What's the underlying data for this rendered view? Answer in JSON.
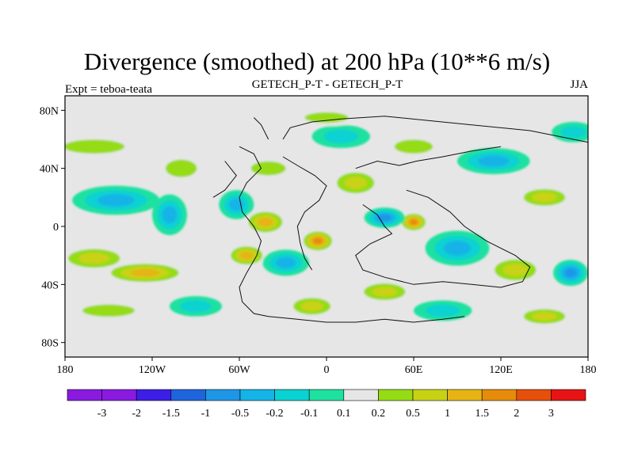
{
  "chart_data": {
    "type": "heatmap",
    "title": "Divergence (smoothed) at 200 hPa (10**6 m/s)",
    "left_string": "Expt = teboa-teata",
    "center_string": "GETECH_P-T - GETECH_P-T",
    "right_string": "JJA",
    "x_ticks": [
      {
        "value": -180,
        "label": "180"
      },
      {
        "value": -120,
        "label": "120W"
      },
      {
        "value": -60,
        "label": "60W"
      },
      {
        "value": 0,
        "label": "0"
      },
      {
        "value": 60,
        "label": "60E"
      },
      {
        "value": 120,
        "label": "120E"
      },
      {
        "value": 180,
        "label": "180"
      }
    ],
    "y_ticks": [
      {
        "value": 80,
        "label": "80N"
      },
      {
        "value": 40,
        "label": "40N"
      },
      {
        "value": 0,
        "label": "0"
      },
      {
        "value": -40,
        "label": "40S"
      },
      {
        "value": -80,
        "label": "80S"
      }
    ],
    "xlim": [
      -180,
      180
    ],
    "ylim": [
      -90,
      90
    ],
    "colorbar": {
      "levels": [
        "-3",
        "-2",
        "-1.5",
        "-1",
        "-0.5",
        "-0.2",
        "-0.1",
        "0.1",
        "0.2",
        "0.5",
        "1",
        "1.5",
        "2",
        "3"
      ],
      "colors": [
        "#8a1ae0",
        "#3c1ee6",
        "#1e64dc",
        "#1e96e6",
        "#14b4e6",
        "#0ad2d2",
        "#1ee1a0",
        "#e6e6e6",
        "#96dc14",
        "#c8d214",
        "#e6b414",
        "#e68c0a",
        "#e6500a",
        "#e61414"
      ]
    },
    "blobs": [
      {
        "x": -160,
        "y": 55,
        "v": 0.3,
        "rx": 35,
        "ry": 8
      },
      {
        "x": -145,
        "y": 18,
        "v": -0.6,
        "rx": 30,
        "ry": 10
      },
      {
        "x": -160,
        "y": -22,
        "v": 0.8,
        "rx": 25,
        "ry": 9
      },
      {
        "x": -125,
        "y": -32,
        "v": 1.1,
        "rx": 30,
        "ry": 8
      },
      {
        "x": -150,
        "y": -58,
        "v": 0.3,
        "rx": 30,
        "ry": 7
      },
      {
        "x": -108,
        "y": 8,
        "v": -0.8,
        "rx": 12,
        "ry": 14
      },
      {
        "x": -100,
        "y": 40,
        "v": 0.4,
        "rx": 18,
        "ry": 10
      },
      {
        "x": -62,
        "y": 15,
        "v": -0.5,
        "rx": 12,
        "ry": 10
      },
      {
        "x": -42,
        "y": 3,
        "v": 1.3,
        "rx": 15,
        "ry": 9
      },
      {
        "x": -55,
        "y": -20,
        "v": 1.1,
        "rx": 14,
        "ry": 8
      },
      {
        "x": -28,
        "y": -25,
        "v": -0.6,
        "rx": 16,
        "ry": 9
      },
      {
        "x": -6,
        "y": -10,
        "v": 1.5,
        "rx": 12,
        "ry": 8
      },
      {
        "x": -40,
        "y": 40,
        "v": 0.2,
        "rx": 20,
        "ry": 8
      },
      {
        "x": 20,
        "y": 30,
        "v": 0.5,
        "rx": 18,
        "ry": 10
      },
      {
        "x": 60,
        "y": 3,
        "v": 1.8,
        "rx": 10,
        "ry": 7
      },
      {
        "x": 40,
        "y": 6,
        "v": -1.0,
        "rx": 14,
        "ry": 7
      },
      {
        "x": 90,
        "y": -15,
        "v": -0.9,
        "rx": 22,
        "ry": 12
      },
      {
        "x": 130,
        "y": -30,
        "v": 0.7,
        "rx": 20,
        "ry": 10
      },
      {
        "x": 168,
        "y": -32,
        "v": -1.2,
        "rx": 12,
        "ry": 9
      },
      {
        "x": 115,
        "y": 45,
        "v": -0.5,
        "rx": 25,
        "ry": 9
      },
      {
        "x": 150,
        "y": 20,
        "v": 0.8,
        "rx": 20,
        "ry": 8
      },
      {
        "x": 10,
        "y": 62,
        "v": -0.3,
        "rx": 20,
        "ry": 8
      },
      {
        "x": 60,
        "y": 55,
        "v": 0.4,
        "rx": 22,
        "ry": 8
      },
      {
        "x": 40,
        "y": -45,
        "v": 0.9,
        "rx": 20,
        "ry": 8
      },
      {
        "x": 80,
        "y": -58,
        "v": -0.4,
        "rx": 20,
        "ry": 7
      },
      {
        "x": 150,
        "y": -62,
        "v": 0.5,
        "rx": 20,
        "ry": 7
      },
      {
        "x": -90,
        "y": -55,
        "v": -0.4,
        "rx": 18,
        "ry": 7
      },
      {
        "x": -10,
        "y": -55,
        "v": 0.6,
        "rx": 18,
        "ry": 8
      },
      {
        "x": 170,
        "y": 65,
        "v": -0.3,
        "rx": 15,
        "ry": 7
      },
      {
        "x": 0,
        "y": 75,
        "v": 0.3,
        "rx": 25,
        "ry": 6
      }
    ]
  }
}
